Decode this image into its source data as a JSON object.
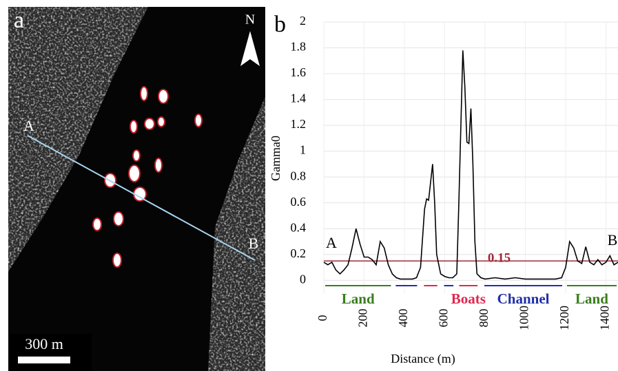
{
  "panel_a": {
    "label": "a",
    "north": "N",
    "point_a": "A",
    "point_b": "B",
    "scale": "300 m"
  },
  "chart_data": {
    "type": "line",
    "panel_label": "b",
    "x_label": "Distance (m)",
    "y_label": "Gamma0",
    "x": [
      0,
      20,
      40,
      60,
      80,
      100,
      120,
      140,
      160,
      180,
      200,
      220,
      240,
      260,
      280,
      300,
      320,
      340,
      360,
      380,
      400,
      420,
      440,
      460,
      480,
      500,
      510,
      520,
      540,
      550,
      560,
      580,
      600,
      620,
      640,
      660,
      670,
      690,
      700,
      710,
      720,
      730,
      740,
      750,
      760,
      780,
      800,
      850,
      900,
      950,
      1000,
      1050,
      1100,
      1150,
      1180,
      1200,
      1220,
      1240,
      1260,
      1280,
      1300,
      1320,
      1340,
      1360,
      1380,
      1400,
      1420,
      1440,
      1460
    ],
    "values": [
      0.14,
      0.12,
      0.14,
      0.08,
      0.05,
      0.08,
      0.12,
      0.25,
      0.4,
      0.28,
      0.18,
      0.18,
      0.16,
      0.12,
      0.3,
      0.25,
      0.12,
      0.05,
      0.02,
      0.01,
      0.01,
      0.01,
      0.01,
      0.02,
      0.1,
      0.55,
      0.63,
      0.62,
      0.9,
      0.6,
      0.2,
      0.05,
      0.03,
      0.02,
      0.02,
      0.05,
      0.6,
      1.78,
      1.5,
      1.07,
      1.06,
      1.33,
      0.9,
      0.3,
      0.05,
      0.02,
      0.01,
      0.02,
      0.01,
      0.02,
      0.01,
      0.01,
      0.01,
      0.01,
      0.02,
      0.1,
      0.3,
      0.25,
      0.15,
      0.13,
      0.26,
      0.14,
      0.12,
      0.16,
      0.12,
      0.14,
      0.19,
      0.12,
      0.14
    ],
    "color": "#000000",
    "xlim": [
      0,
      1460
    ],
    "xticks": [
      0,
      200,
      400,
      600,
      800,
      1000,
      1200,
      1400
    ],
    "ylim": [
      -0.1,
      2
    ],
    "yticks": [
      0,
      0.2,
      0.4,
      0.6,
      0.8,
      1,
      1.2,
      1.4,
      1.6,
      1.8,
      2
    ],
    "grid": true,
    "threshold": {
      "value": 0.15,
      "color": "#a0293a"
    },
    "annotations": [
      "A",
      "B"
    ],
    "regions": [
      {
        "label": "Land",
        "color": "#3a7d1e",
        "spans": [
          [
            0,
            340
          ]
        ]
      },
      {
        "label": "Boats",
        "color": "#e0284f",
        "spans": [
          [
            490,
            570
          ],
          [
            665,
            770
          ]
        ]
      },
      {
        "label": "Channel",
        "color": "#1f2fa8",
        "spans": [
          [
            790,
            1190
          ],
          [
            350,
            470
          ],
          [
            590,
            650
          ]
        ]
      },
      {
        "label": "Land",
        "color": "#3a7d1e",
        "spans": [
          [
            1200,
            1460
          ]
        ]
      }
    ]
  }
}
